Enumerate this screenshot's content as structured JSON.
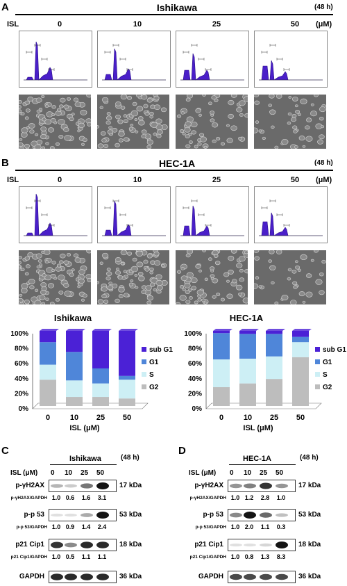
{
  "colors": {
    "sub_g1": "#4b21d6",
    "g1": "#4f86d9",
    "s": "#cdeff5",
    "g2": "#bdbdbd",
    "histogram_fill": "#4a1fc9",
    "micrograph_bg": "#6a6a6a"
  },
  "panelA": {
    "letter": "A",
    "cell_line": "Ishikawa",
    "time": "(48 h)",
    "isl_label": "ISL",
    "unit": "(μM)",
    "concentrations": [
      "0",
      "10",
      "25",
      "50"
    ]
  },
  "panelB": {
    "letter": "B",
    "cell_line": "HEC-1A",
    "time": "(48 h)",
    "isl_label": "ISL",
    "unit": "(μM)",
    "concentrations": [
      "0",
      "10",
      "25",
      "50"
    ]
  },
  "chart_data": [
    {
      "type": "bar",
      "title": "Ishikawa",
      "xlabel": "ISL (μM)",
      "ylabel": "",
      "categories": [
        "0",
        "10",
        "25",
        "50"
      ],
      "y_ticks": [
        "0%",
        "20%",
        "40%",
        "60%",
        "80%",
        "100%"
      ],
      "ylim": [
        0,
        100
      ],
      "stacked": true,
      "legend_position": "right",
      "series": [
        {
          "name": "G2",
          "values": [
            35,
            12,
            12,
            10
          ]
        },
        {
          "name": "S",
          "values": [
            20,
            22,
            18,
            25
          ]
        },
        {
          "name": "G1",
          "values": [
            30,
            38,
            20,
            5
          ]
        },
        {
          "name": "sub G1",
          "values": [
            15,
            28,
            50,
            60
          ]
        }
      ]
    },
    {
      "type": "bar",
      "title": "HEC-1A",
      "xlabel": "ISL (μM)",
      "ylabel": "",
      "categories": [
        "0",
        "10",
        "25",
        "50"
      ],
      "y_ticks": [
        "0%",
        "20%",
        "40%",
        "60%",
        "80%",
        "100%"
      ],
      "ylim": [
        0,
        100
      ],
      "stacked": true,
      "legend_position": "right",
      "series": [
        {
          "name": "G2",
          "values": [
            25,
            30,
            36,
            65
          ]
        },
        {
          "name": "S",
          "values": [
            37,
            33,
            30,
            20
          ]
        },
        {
          "name": "G1",
          "values": [
            35,
            33,
            30,
            7
          ]
        },
        {
          "name": "sub G1",
          "values": [
            3,
            4,
            4,
            8
          ]
        }
      ]
    }
  ],
  "panelC": {
    "letter": "C",
    "cell_line": "Ishikawa",
    "time": "(48 h)",
    "isl_label": "ISL (μM)",
    "concentrations": [
      "0",
      "10",
      "25",
      "50"
    ],
    "blots": [
      {
        "label": "p-γH2AX",
        "kda": "17 kDa",
        "ratio_label": "p-γH2AX/GAPDH",
        "ratios": [
          "1.0",
          "0.6",
          "1.6",
          "3.1"
        ],
        "intensity": [
          0.25,
          0.15,
          0.55,
          1.0
        ]
      },
      {
        "label": "p-p 53",
        "kda": "53 kDa",
        "ratio_label": "p-p 53/GAPDH",
        "ratios": [
          "1.0",
          "0.9",
          "1.4",
          "2.4"
        ],
        "intensity": [
          0.05,
          0.05,
          0.3,
          1.0
        ]
      },
      {
        "label": "p21 Cip1",
        "kda": "18 kDa",
        "ratio_label": "p21 Cip1/GAPDH",
        "ratios": [
          "1.0",
          "0.5",
          "1.1",
          "1.1"
        ],
        "intensity": [
          0.85,
          0.45,
          0.9,
          0.9
        ]
      },
      {
        "label": "GAPDH",
        "kda": "36 kDa",
        "ratio_label": "",
        "ratios": [],
        "intensity": [
          0.9,
          0.9,
          0.9,
          0.9
        ]
      }
    ]
  },
  "panelD": {
    "letter": "D",
    "cell_line": "HEC-1A",
    "time": "(48 h)",
    "isl_label": "ISL (μM)",
    "concentrations": [
      "0",
      "10",
      "25",
      "50"
    ],
    "blots": [
      {
        "label": "p-γH2AX",
        "kda": "17 kDa",
        "ratio_label": "p-γH2AX/GAPDH",
        "ratios": [
          "1.0",
          "1.2",
          "2.8",
          "1.0"
        ],
        "intensity": [
          0.4,
          0.5,
          0.85,
          0.4
        ]
      },
      {
        "label": "p-p 53",
        "kda": "53 kDa",
        "ratio_label": "p-p 53/GAPDH",
        "ratios": [
          "1.0",
          "2.0",
          "1.1",
          "0.3"
        ],
        "intensity": [
          0.45,
          1.0,
          0.6,
          0.2
        ]
      },
      {
        "label": "p21 Cip1",
        "kda": "18 kDa",
        "ratio_label": "p21 Cip1/GAPDH",
        "ratios": [
          "1.0",
          "0.8",
          "1.3",
          "8.3"
        ],
        "intensity": [
          0.05,
          0.05,
          0.1,
          1.0
        ]
      },
      {
        "label": "GAPDH",
        "kda": "36 kDa",
        "ratio_label": "",
        "ratios": [],
        "intensity": [
          0.75,
          0.75,
          0.75,
          0.75
        ]
      }
    ]
  }
}
